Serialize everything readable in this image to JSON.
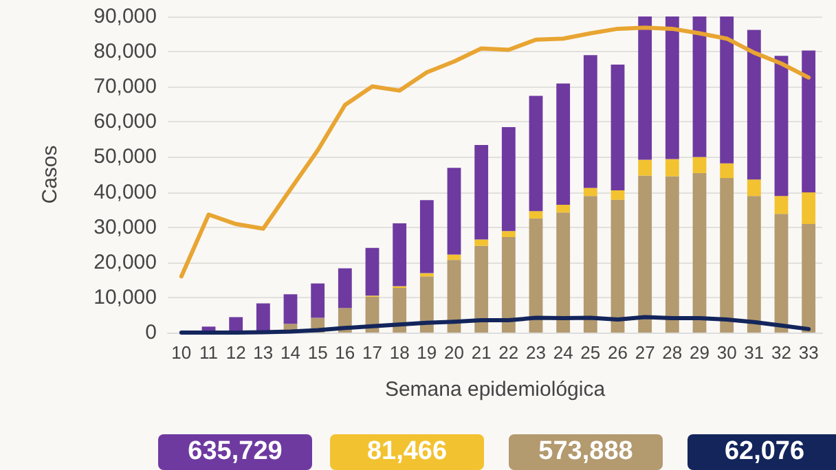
{
  "chart_data": {
    "type": "bar",
    "stacked": true,
    "xlabel": "Semana epidemiológica",
    "ylabel": "Casos",
    "categories": [
      "10",
      "11",
      "12",
      "13",
      "14",
      "15",
      "16",
      "17",
      "18",
      "19",
      "20",
      "21",
      "22",
      "23",
      "24",
      "25",
      "26",
      "27",
      "28",
      "29",
      "30",
      "31",
      "32",
      "33"
    ],
    "series": [
      {
        "color": "#b39a6f",
        "values": [
          0,
          0,
          300,
          null,
          2500,
          4200,
          7000,
          10200,
          12700,
          16000,
          20700,
          24700,
          27200,
          32500,
          34200,
          38900,
          37800,
          44700,
          44500,
          45400,
          44000,
          38900,
          33800,
          30900
        ]
      },
      {
        "color": "#f2c230",
        "values": [
          0,
          0,
          0,
          0,
          0,
          0,
          0,
          300,
          500,
          900,
          1500,
          1800,
          1700,
          2100,
          2200,
          2300,
          2700,
          4500,
          4900,
          4600,
          4200,
          4700,
          5100,
          9000
        ]
      },
      {
        "color": "#6e3aa0",
        "values": [
          null,
          1700,
          4100,
          8300,
          8400,
          9800,
          11300,
          13600,
          17900,
          20800,
          24700,
          26900,
          29600,
          32800,
          34500,
          37800,
          35800,
          40800,
          40600,
          40000,
          41800,
          42600,
          39900,
          40400
        ]
      },
      {
        "type": "line",
        "color": "#e8a532",
        "values": [
          16000,
          33600,
          30900,
          29600,
          40800,
          51900,
          64800,
          70100,
          68900,
          74100,
          77200,
          80900,
          80500,
          83400,
          83700,
          85200,
          86500,
          86800,
          86500,
          85200,
          83700,
          79700,
          76600,
          72600
        ]
      },
      {
        "type": "line",
        "color": "#13255b",
        "values": [
          0,
          0,
          0,
          100,
          300,
          700,
          1300,
          1800,
          2300,
          2800,
          3100,
          3500,
          3500,
          4200,
          4100,
          4200,
          3700,
          4400,
          4100,
          4100,
          3700,
          3000,
          2000,
          1000
        ]
      }
    ],
    "ylim": [
      0,
      90000
    ],
    "yticks": [
      {
        "value": 0,
        "label": "0"
      },
      {
        "value": 10000,
        "label": "10,000"
      },
      {
        "value": 20000,
        "label": "20,000"
      },
      {
        "value": 30000,
        "label": "30,000"
      },
      {
        "value": 40000,
        "label": "40,000"
      },
      {
        "value": 50000,
        "label": "50,000"
      },
      {
        "value": 60000,
        "label": "60,000"
      },
      {
        "value": 70000,
        "label": "70,000"
      },
      {
        "value": 80000,
        "label": "80,000"
      },
      {
        "value": 90000,
        "label": "90,000"
      }
    ],
    "grid": "y",
    "marker": "none",
    "line_style": "solid",
    "annotations": [
      "635,729",
      "81,466",
      "573,888",
      "62,076"
    ]
  }
}
